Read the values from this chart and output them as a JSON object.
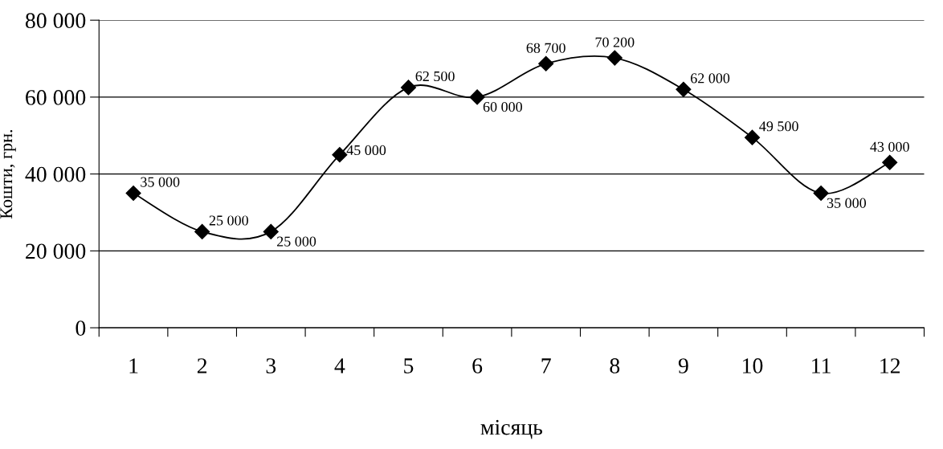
{
  "chart_data": {
    "type": "line",
    "xlabel": "місяць",
    "ylabel": "Кошти, грн.",
    "categories": [
      "1",
      "2",
      "3",
      "4",
      "5",
      "6",
      "7",
      "8",
      "9",
      "10",
      "11",
      "12"
    ],
    "series": [
      {
        "color": "#000000",
        "values": [
          35000,
          25000,
          25000,
          45000,
          62500,
          60000,
          68700,
          70200,
          62000,
          49500,
          35000,
          43000
        ],
        "value_labels": [
          "35 000",
          "25 000",
          "25 000",
          "45 000",
          "62 500",
          "60 000",
          "68 700",
          "70 200",
          "62 000",
          "49 500",
          "35 000",
          "43 000"
        ]
      }
    ],
    "ylim": [
      0,
      80000
    ],
    "yticks": [
      0,
      {
        "value": 20000,
        "label": "20 000"
      },
      {
        "value": 40000,
        "label": "40 000"
      },
      {
        "value": 60000,
        "label": "60 000"
      },
      {
        "value": 80000,
        "label": "80 000"
      }
    ],
    "grid": "y",
    "marker": "diamond",
    "line_style": "solid"
  }
}
